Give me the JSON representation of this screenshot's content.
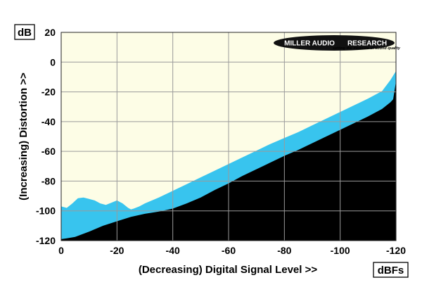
{
  "logo": {
    "text_left": "MILLER AUDIO",
    "text_right": "RESEARCH",
    "tagline": "setting the measure of sound quality"
  },
  "chart_data": {
    "type": "area",
    "ylabel": "(Increasing) Distortion >>",
    "xlabel": "(Decreasing) Digital Signal Level >>",
    "y_unit": "dB",
    "x_unit": "dBFs",
    "xlim": [
      0,
      -120
    ],
    "ylim": [
      -120,
      20
    ],
    "x_ticks": [
      0,
      -20,
      -40,
      -60,
      -80,
      -100,
      -120
    ],
    "y_ticks": [
      20,
      0,
      -20,
      -40,
      -60,
      -80,
      -100,
      -120
    ],
    "x_tick_labels": [
      "0",
      "-20",
      "-40",
      "-60",
      "-80",
      "-100",
      "-120"
    ],
    "y_tick_labels": [
      "20",
      "0",
      "-20",
      "-40",
      "-60",
      "-80",
      "-100",
      "-120"
    ],
    "grid": true,
    "colors": {
      "upper_fill": "#fdfde6",
      "band_fill": "#38c4ee",
      "lower_fill": "#000000",
      "grid": "#9a9a9a"
    },
    "series": [
      {
        "x": [
          0,
          -2,
          -4,
          -6,
          -8,
          -10,
          -12,
          -14,
          -16,
          -18,
          -20,
          -22,
          -24,
          -25,
          -26,
          -28,
          -30,
          -35,
          -40,
          -45,
          -50,
          -55,
          -60,
          -65,
          -70,
          -75,
          -80,
          -85,
          -90,
          -95,
          -100,
          -105,
          -110,
          -115,
          -118,
          -120
        ],
        "y": [
          -97,
          -98,
          -95,
          -91.5,
          -91,
          -92,
          -93,
          -95,
          -96,
          -94.5,
          -93,
          -95,
          -98,
          -99,
          -98.5,
          -97,
          -95,
          -91,
          -86.5,
          -82,
          -77.5,
          -73,
          -68.5,
          -64,
          -59.5,
          -55,
          -51,
          -47,
          -42.5,
          -38,
          -33.5,
          -29,
          -24.5,
          -19.5,
          -12,
          -6
        ]
      },
      {
        "x": [
          0,
          -2,
          -5,
          -10,
          -15,
          -20,
          -25,
          -30,
          -35,
          -40,
          -45,
          -50,
          -55,
          -60,
          -65,
          -70,
          -75,
          -80,
          -85,
          -90,
          -95,
          -100,
          -105,
          -110,
          -115,
          -118,
          -119,
          -120
        ],
        "y": [
          -119,
          -118.5,
          -117.5,
          -114,
          -110,
          -107,
          -104,
          -102,
          -100.5,
          -98.5,
          -95,
          -91,
          -86,
          -81.5,
          -76.5,
          -72,
          -67.5,
          -63,
          -59,
          -54.5,
          -50,
          -45.5,
          -41,
          -36.5,
          -31.5,
          -27,
          -25,
          -13
        ]
      }
    ]
  }
}
